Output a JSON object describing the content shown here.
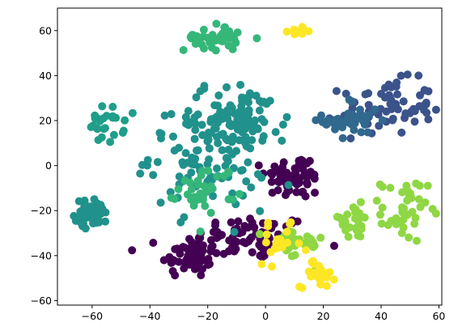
{
  "chart_data": {
    "type": "scatter",
    "title": "",
    "xlabel": "",
    "ylabel": "",
    "xlim": [
      -72,
      61
    ],
    "ylim": [
      -62,
      70
    ],
    "xticks": [
      -60,
      -40,
      -20,
      0,
      20,
      40,
      60
    ],
    "yticks": [
      -60,
      -40,
      -20,
      0,
      20,
      40,
      60
    ],
    "xtick_labels": [
      "−60",
      "−40",
      "−20",
      "0",
      "20",
      "40",
      "60"
    ],
    "ytick_labels": [
      "−60",
      "−40",
      "−20",
      "0",
      "20",
      "40",
      "60"
    ],
    "grid": false,
    "legend": "none",
    "colormap": "viridis",
    "clusters": [
      {
        "color": "#440154",
        "center": [
          -4,
          -32
        ],
        "spread": [
          10,
          5
        ],
        "count": 70
      },
      {
        "color": "#440154",
        "center": [
          -26,
          -40
        ],
        "spread": [
          5,
          5
        ],
        "count": 60
      },
      {
        "color": "#440154",
        "center": [
          10,
          -5
        ],
        "spread": [
          5,
          5
        ],
        "count": 60
      },
      {
        "color": "#3b528b",
        "center": [
          42,
          26
        ],
        "spread": [
          8,
          6
        ],
        "count": 70
      },
      {
        "color": "#31688e",
        "center": [
          30,
          20
        ],
        "spread": [
          5,
          5
        ],
        "count": 40
      },
      {
        "color": "#21918c",
        "center": [
          -60,
          -21
        ],
        "spread": [
          3,
          3
        ],
        "count": 45
      },
      {
        "color": "#21918c",
        "center": [
          -20,
          5
        ],
        "spread": [
          10,
          12
        ],
        "count": 120
      },
      {
        "color": "#21918c",
        "center": [
          -8,
          20
        ],
        "spread": [
          8,
          8
        ],
        "count": 70
      },
      {
        "color": "#1f9e89",
        "center": [
          -55,
          18
        ],
        "spread": [
          3,
          4
        ],
        "count": 25
      },
      {
        "color": "#35b779",
        "center": [
          -18,
          57
        ],
        "spread": [
          5,
          3
        ],
        "count": 40
      },
      {
        "color": "#35b779",
        "center": [
          -20,
          -10
        ],
        "spread": [
          5,
          5
        ],
        "count": 35
      },
      {
        "color": "#8fd744",
        "center": [
          48,
          -20
        ],
        "spread": [
          4,
          7
        ],
        "count": 40
      },
      {
        "color": "#8fd744",
        "center": [
          10,
          -35
        ],
        "spread": [
          5,
          4
        ],
        "count": 30
      },
      {
        "color": "#8fd744",
        "center": [
          30,
          -25
        ],
        "spread": [
          4,
          4
        ],
        "count": 25
      },
      {
        "color": "#fde725",
        "center": [
          18,
          -48
        ],
        "spread": [
          3,
          3
        ],
        "count": 30
      },
      {
        "color": "#fde725",
        "center": [
          12,
          60
        ],
        "spread": [
          2,
          1
        ],
        "count": 10
      },
      {
        "color": "#fde725",
        "center": [
          5,
          -35
        ],
        "spread": [
          4,
          4
        ],
        "count": 20
      }
    ]
  }
}
